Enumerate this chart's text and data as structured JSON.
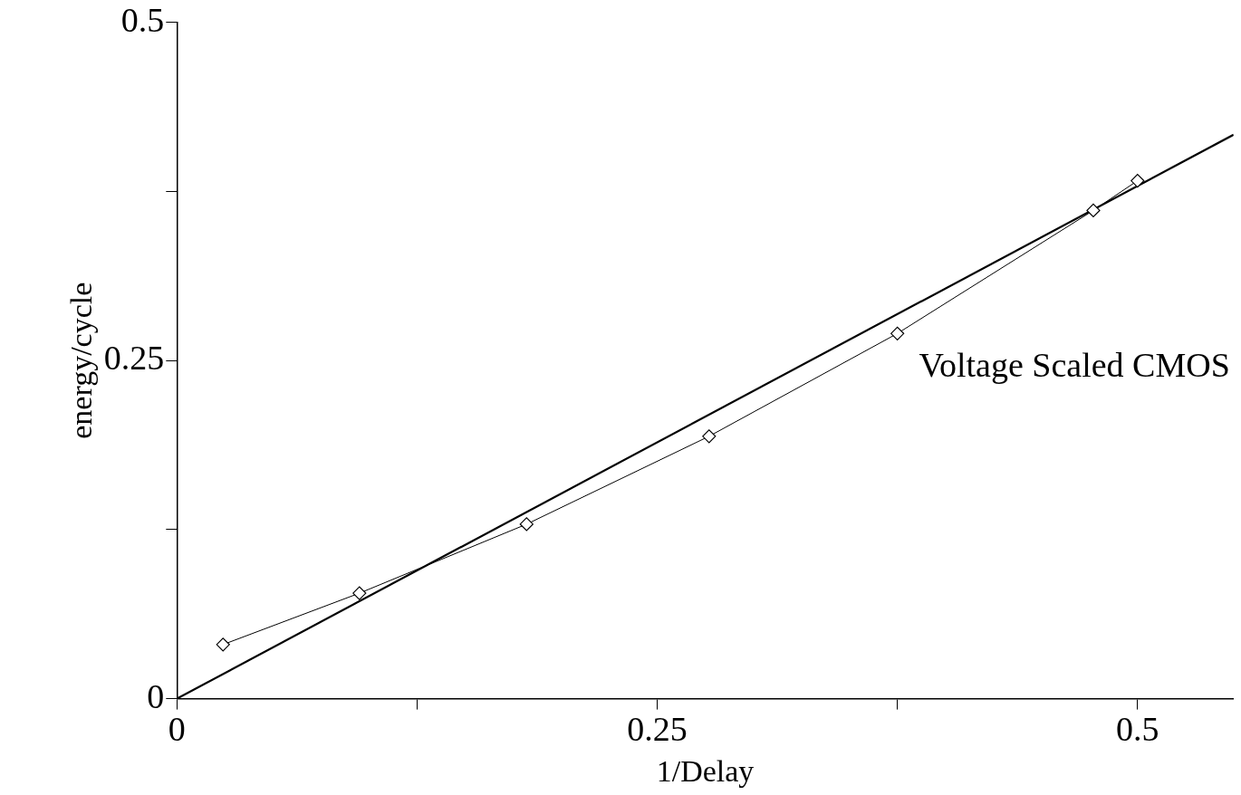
{
  "chart_data": {
    "type": "line",
    "xlabel": "1/Delay",
    "ylabel": "energy/cycle",
    "xlim": [
      0,
      0.55
    ],
    "ylim": [
      0,
      0.5
    ],
    "xticks": [
      0,
      {
        "value": 0.125,
        "label": null
      },
      0.25,
      {
        "value": 0.375,
        "label": null
      },
      0.5
    ],
    "yticks": [
      0,
      {
        "value": 0.125,
        "label": null
      },
      0.25,
      {
        "value": 0.375,
        "label": null
      },
      0.5
    ],
    "grid": false,
    "legend": false,
    "series": [
      {
        "color": "#000000",
        "marker": "diamond",
        "x": [
          0.024,
          0.095,
          0.182,
          0.277,
          0.375,
          0.477,
          0.5
        ],
        "values": [
          0.04,
          0.078,
          0.129,
          0.194,
          0.27,
          0.361,
          0.383
        ]
      },
      {
        "color": "#000000",
        "marker": "none",
        "x": [
          0,
          0.55
        ],
        "values": [
          0,
          0.417
        ]
      }
    ],
    "annotations": [
      "Voltage Scaled CMOS"
    ]
  }
}
